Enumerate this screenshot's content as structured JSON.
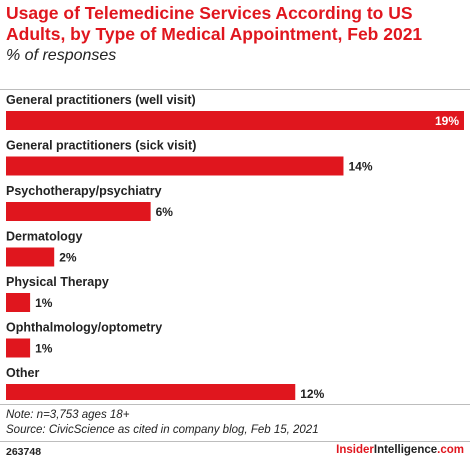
{
  "title": "Usage of Telemedicine Services According to US Adults, by Type of Medical Appointment, Feb 2021",
  "subtitle": "% of responses",
  "note": "Note: n=3,753 ages 18+",
  "source": "Source: CivicScience as cited in company blog, Feb 15, 2021",
  "chart_id": "263748",
  "brand": {
    "part1": "Insider",
    "part2": "Intelligence",
    "part3": ".com"
  },
  "colors": {
    "accent": "#e0161e",
    "bar": "#e0161e",
    "text": "#222222"
  },
  "chart_data": {
    "type": "bar",
    "orientation": "horizontal",
    "categories": [
      "General practitioners (well visit)",
      "General practitioners (sick visit)",
      "Psychotherapy/psychiatry",
      "Dermatology",
      "Physical Therapy",
      "Ophthalmology/optometry",
      "Other"
    ],
    "values": [
      19,
      14,
      6,
      2,
      1,
      1,
      12
    ],
    "value_labels": [
      "19%",
      "14%",
      "6%",
      "2%",
      "1%",
      "1%",
      "12%"
    ],
    "xlim": [
      0,
      19
    ],
    "grid": false,
    "legend": "none"
  }
}
